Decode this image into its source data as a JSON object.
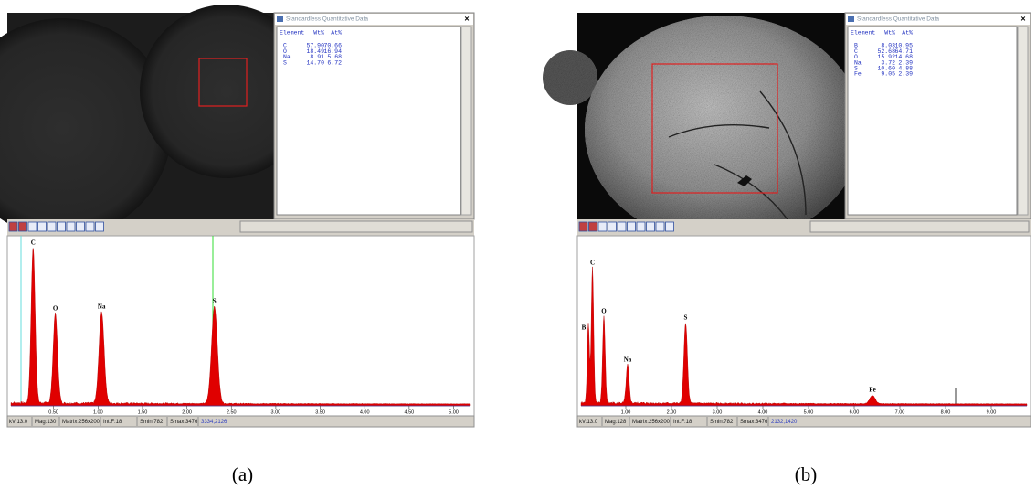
{
  "panels": [
    {
      "window_title": "Standardless Quantitative Data",
      "table": {
        "header": [
          "Element",
          "Wt%",
          "At%"
        ],
        "rows": [
          [
            "C",
            "57.90",
            "70.66"
          ],
          [
            "O",
            "18.49",
            "16.94"
          ],
          [
            "Na",
            "8.91",
            "5.68"
          ],
          [
            "S",
            "14.70",
            "6.72"
          ]
        ]
      },
      "peak_labels": [
        "C",
        "O",
        "Na",
        "S"
      ],
      "axis_ticks": [
        "0.50",
        "1.00",
        "1.50",
        "2.00",
        "2.50",
        "3.00",
        "3.50",
        "4.00",
        "4.50",
        "5.00"
      ],
      "status_bar": [
        "kV:13.0",
        "Mag:130",
        "Matrix:256x200",
        "Int.F:18",
        "Smin:782",
        "Smax:3476",
        "3334,2126"
      ],
      "caption": "(a)"
    },
    {
      "window_title": "Standardless Quantitative Data",
      "table": {
        "header": [
          "Element",
          "Wt%",
          "At%"
        ],
        "rows": [
          [
            "B",
            "8.03",
            "10.95"
          ],
          [
            "C",
            "52.68",
            "64.71"
          ],
          [
            "O",
            "15.92",
            "14.68"
          ],
          [
            "Na",
            "3.72",
            "2.39"
          ],
          [
            "S",
            "10.60",
            "4.88"
          ],
          [
            "Fe",
            "9.05",
            "2.39"
          ]
        ]
      },
      "peak_labels": [
        "B",
        "C",
        "O",
        "Na",
        "S",
        "Fe"
      ],
      "axis_ticks": [
        "1.00",
        "2.00",
        "3.00",
        "4.00",
        "5.00",
        "6.00",
        "7.00",
        "8.00",
        "9.00"
      ],
      "status_bar": [
        "kV:13.0",
        "Mag:128",
        "Matrix:256x200",
        "Int.F:18",
        "Smin:782",
        "Smax:3476",
        "2132,1420"
      ],
      "caption": "(b)"
    }
  ]
}
